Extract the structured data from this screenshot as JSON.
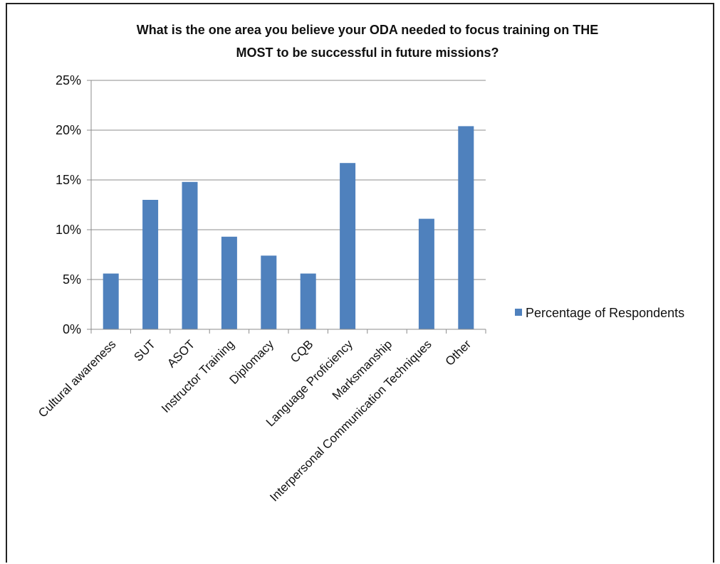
{
  "chart_data": {
    "type": "bar",
    "title_lines": [
      "What is the one area you believe your ODA needed to focus training on THE",
      "MOST to be successful in future missions?"
    ],
    "categories": [
      "Cultural awareness",
      "SUT",
      "ASOT",
      "Instructor Training",
      "Diplomacy",
      "CQB",
      "Language Proficiency",
      "Marksmanship",
      "Interpersonal Communication Techniques",
      "Other"
    ],
    "series": [
      {
        "name": "Percentage of Respondents",
        "values": [
          5.6,
          13.0,
          14.8,
          9.3,
          7.4,
          5.6,
          16.7,
          0,
          11.1,
          20.4
        ],
        "color": "#4f81bd"
      }
    ],
    "ylim": [
      0,
      25
    ],
    "yticks": [
      "0%",
      "5%",
      "10%",
      "15%",
      "20%",
      "25%"
    ],
    "ytick_values": [
      0,
      5,
      10,
      15,
      20,
      25
    ],
    "xlabel": "",
    "ylabel": "",
    "grid": true,
    "legend_position": "right"
  }
}
